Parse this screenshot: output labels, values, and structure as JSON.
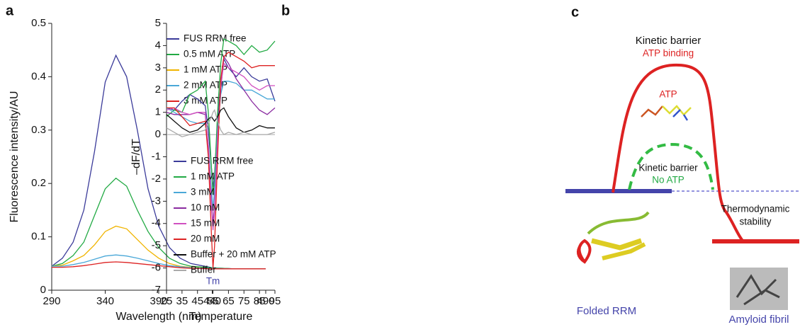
{
  "chart_data": [
    {
      "type": "line",
      "panel": "a",
      "xlabel": "Wavelength (nm)",
      "ylabel": "Fluorescence intensity/AU",
      "x": [
        290,
        300,
        310,
        320,
        330,
        340,
        350,
        360,
        370,
        380,
        390,
        400,
        410,
        420,
        440,
        460,
        490
      ],
      "xlim": [
        290,
        490
      ],
      "xticks": [
        290,
        340,
        390,
        440,
        490
      ],
      "ylim": [
        0,
        0.5
      ],
      "yticks": [
        0,
        0.1,
        0.2,
        0.3,
        0.4,
        0.5
      ],
      "legend": "upper right",
      "series": [
        {
          "name": "FUS RRM free",
          "color": "#3b3b9a",
          "values": [
            0.045,
            0.06,
            0.09,
            0.15,
            0.26,
            0.39,
            0.44,
            0.4,
            0.3,
            0.19,
            0.12,
            0.08,
            0.06,
            0.05,
            0.042,
            0.04,
            0.04
          ]
        },
        {
          "name": "0.5 mM ATP",
          "color": "#22aa44",
          "values": [
            0.045,
            0.05,
            0.065,
            0.09,
            0.14,
            0.19,
            0.21,
            0.195,
            0.15,
            0.11,
            0.08,
            0.06,
            0.05,
            0.045,
            0.042,
            0.04,
            0.04
          ]
        },
        {
          "name": "1 mM ATP",
          "color": "#f0b400",
          "values": [
            0.045,
            0.047,
            0.055,
            0.065,
            0.085,
            0.11,
            0.12,
            0.115,
            0.095,
            0.075,
            0.06,
            0.05,
            0.045,
            0.043,
            0.041,
            0.04,
            0.04
          ]
        },
        {
          "name": "2 mM ATP",
          "color": "#4aa8d8",
          "values": [
            0.045,
            0.045,
            0.048,
            0.052,
            0.058,
            0.064,
            0.066,
            0.064,
            0.06,
            0.055,
            0.05,
            0.046,
            0.044,
            0.042,
            0.041,
            0.04,
            0.04
          ]
        },
        {
          "name": "3 mM ATP",
          "color": "#dd2222",
          "values": [
            0.043,
            0.043,
            0.044,
            0.046,
            0.049,
            0.052,
            0.053,
            0.052,
            0.05,
            0.048,
            0.046,
            0.044,
            0.042,
            0.041,
            0.04,
            0.04,
            0.04
          ]
        }
      ]
    },
    {
      "type": "line",
      "panel": "b",
      "xlabel": "Temperature",
      "ylabel": "–dF/dT",
      "x": [
        25,
        30,
        35,
        40,
        45,
        50,
        52,
        54,
        55,
        56,
        58,
        60,
        62,
        65,
        70,
        75,
        80,
        85,
        90,
        95
      ],
      "xlim": [
        25,
        95
      ],
      "xticks": [
        25,
        35,
        45,
        55,
        65,
        75,
        85,
        95
      ],
      "ylim": [
        -7,
        5
      ],
      "yticks": [
        -7,
        -6,
        -5,
        -4,
        -3,
        -2,
        -1,
        0,
        1,
        2,
        3,
        4,
        5
      ],
      "reference_line": 0,
      "legend": "lower center",
      "annotations": [
        {
          "text": "Tm",
          "x": 55
        }
      ],
      "series": [
        {
          "name": "FUS RRM free",
          "color": "#3b3b9a",
          "values": [
            1.2,
            1.1,
            1.5,
            1.8,
            1.6,
            1.3,
            0.2,
            -1.5,
            -2.4,
            -1.8,
            0.5,
            2.3,
            3.4,
            3.0,
            2.6,
            3.0,
            2.6,
            2.4,
            2.5,
            1.5
          ]
        },
        {
          "name": "1 mM ATP",
          "color": "#22aa44",
          "values": [
            0.8,
            1.1,
            1.0,
            1.8,
            2.0,
            2.4,
            1.0,
            -1.5,
            -2.7,
            -2.0,
            1.0,
            3.2,
            4.3,
            4.2,
            4.0,
            3.6,
            4.0,
            3.7,
            3.8,
            4.2
          ]
        },
        {
          "name": "3 mM",
          "color": "#4aa8d8",
          "values": [
            1.2,
            1.0,
            0.8,
            0.6,
            0.5,
            0.5,
            -0.5,
            -2.5,
            -3.3,
            -2.5,
            0.2,
            1.8,
            2.4,
            2.4,
            2.3,
            2.0,
            2.0,
            1.8,
            1.6,
            1.6
          ]
        },
        {
          "name": "10 mM",
          "color": "#8a2ba0",
          "values": [
            1.0,
            0.9,
            0.9,
            0.9,
            1.0,
            0.9,
            -0.5,
            -3.0,
            -4.0,
            -3.2,
            0.0,
            2.0,
            3.5,
            3.2,
            2.5,
            2.0,
            1.5,
            1.1,
            0.9,
            1.2
          ]
        },
        {
          "name": "15 mM",
          "color": "#d050c0",
          "values": [
            1.1,
            1.2,
            1.0,
            0.9,
            1.0,
            1.0,
            -0.6,
            -3.2,
            -4.3,
            -3.5,
            0.0,
            2.2,
            3.2,
            3.0,
            2.8,
            2.6,
            2.2,
            2.0,
            2.2,
            2.2
          ]
        },
        {
          "name": "20 mM",
          "color": "#dd2222",
          "values": [
            1.2,
            1.2,
            0.8,
            0.4,
            0.5,
            0.6,
            -1.0,
            -4.5,
            -6.0,
            -5.0,
            -1.0,
            2.5,
            3.5,
            3.7,
            3.5,
            3.3,
            3.0,
            3.1,
            3.1,
            3.1
          ]
        },
        {
          "name": "Buffer + 20 mM ATP",
          "color": "#111111",
          "values": [
            0.9,
            0.6,
            0.3,
            0.1,
            0.2,
            0.5,
            0.7,
            0.8,
            0.7,
            0.6,
            0.8,
            1.1,
            1.2,
            0.8,
            0.3,
            0.1,
            0.2,
            0.4,
            0.3,
            0.3
          ]
        },
        {
          "name": "Buffer",
          "color": "#aaaaaa",
          "values": [
            0.3,
            0.1,
            -0.1,
            0.0,
            0.1,
            0.2,
            0.5,
            0.8,
            1.0,
            1.1,
            0.6,
            0.2,
            0.0,
            0.1,
            0.0,
            0.1,
            0.0,
            0.0,
            0.0,
            0.1
          ]
        }
      ]
    }
  ],
  "diagram": {
    "panel": "c",
    "barrier_title": "Kinetic barrier",
    "barrier_atp": "ATP binding",
    "ligand": "ATP",
    "barrier_title_2": "Kinetic barrier",
    "barrier_no_atp": "No ATP",
    "thermodynamic": [
      "Thermodynamic",
      "stability"
    ],
    "folded": "Folded RRM",
    "fibril": "Amyloid fibril"
  }
}
